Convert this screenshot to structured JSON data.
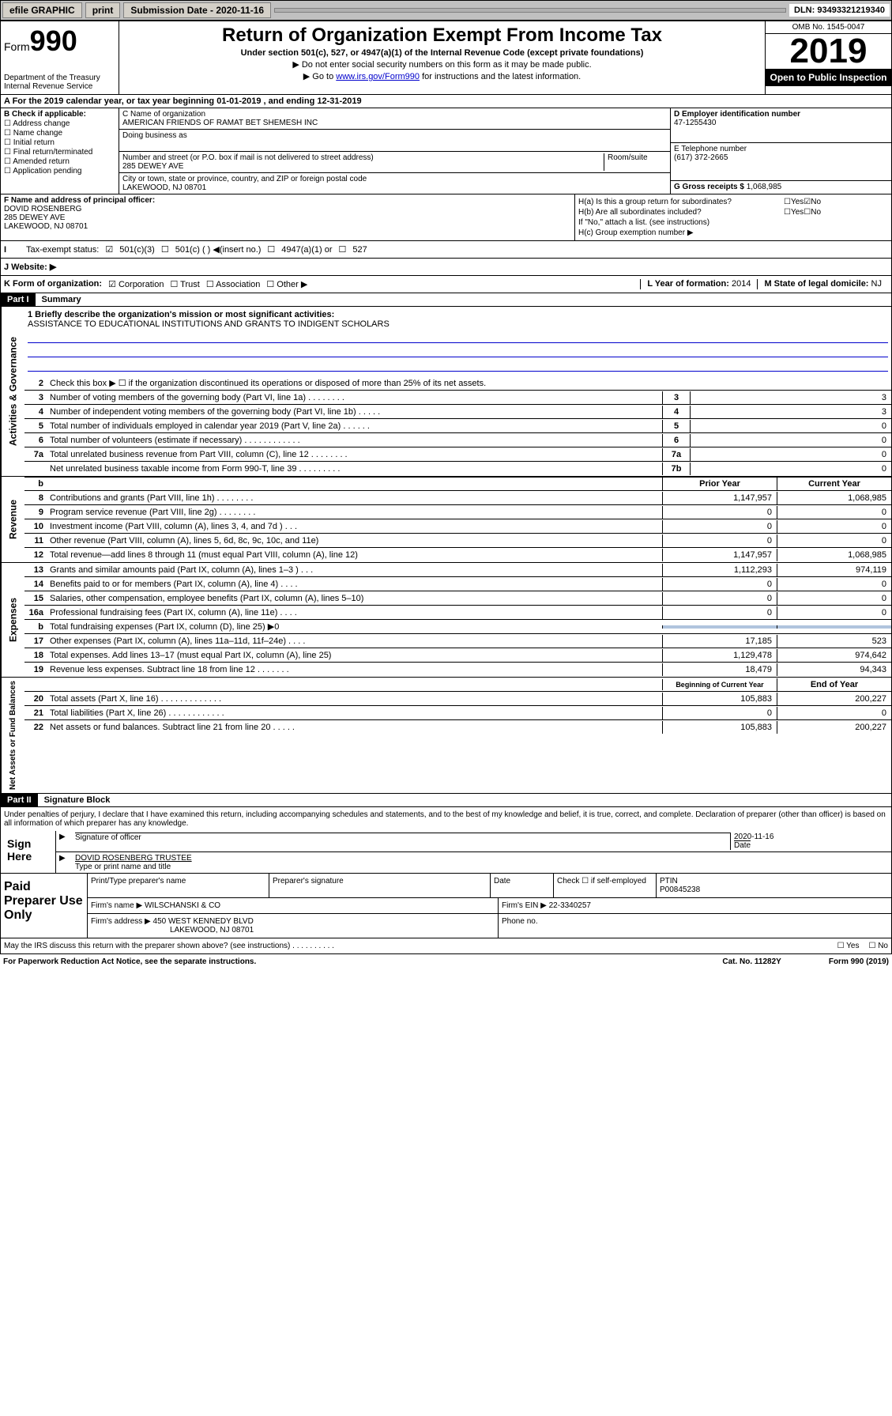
{
  "topbar": {
    "efile": "efile GRAPHIC",
    "print": "print",
    "sub_label": "Submission Date - 2020-11-16",
    "dln": "DLN: 93493321219340"
  },
  "header": {
    "form_prefix": "Form",
    "form_number": "990",
    "dept": "Department of the Treasury Internal Revenue Service",
    "title": "Return of Organization Exempt From Income Tax",
    "subtitle": "Under section 501(c), 527, or 4947(a)(1) of the Internal Revenue Code (except private foundations)",
    "inst1": "▶ Do not enter social security numbers on this form as it may be made public.",
    "inst2_pre": "▶ Go to ",
    "inst2_link": "www.irs.gov/Form990",
    "inst2_post": " for instructions and the latest information.",
    "omb": "OMB No. 1545-0047",
    "year": "2019",
    "open_public": "Open to Public Inspection"
  },
  "period": "A For the 2019 calendar year, or tax year beginning 01-01-2019    , and ending 12-31-2019",
  "section_b": {
    "label": "B Check if applicable:",
    "items": [
      "Address change",
      "Name change",
      "Initial return",
      "Final return/terminated",
      "Amended return",
      "Application pending"
    ]
  },
  "section_c": {
    "name_label": "C Name of organization",
    "org_name": "AMERICAN FRIENDS OF RAMAT BET SHEMESH INC",
    "dba_label": "Doing business as",
    "addr_label": "Number and street (or P.O. box if mail is not delivered to street address)",
    "room_label": "Room/suite",
    "address": "285 DEWEY AVE",
    "city_label": "City or town, state or province, country, and ZIP or foreign postal code",
    "city": "LAKEWOOD, NJ  08701"
  },
  "section_d": {
    "ein_label": "D Employer identification number",
    "ein": "47-1255430",
    "phone_label": "E Telephone number",
    "phone": "(617) 372-2665",
    "gross_label": "G Gross receipts $",
    "gross": "1,068,985"
  },
  "section_f": {
    "label": "F Name and address of principal officer:",
    "name": "DOVID ROSENBERG",
    "addr1": "285 DEWEY AVE",
    "addr2": "LAKEWOOD, NJ  08701"
  },
  "section_h": {
    "ha_label": "H(a)  Is this a group return for subordinates?",
    "hb_label": "H(b)  Are all subordinates included?",
    "hb_note": "If \"No,\" attach a list. (see instructions)",
    "hc_label": "H(c)  Group exemption number ▶"
  },
  "tax_status": {
    "label": "Tax-exempt status:",
    "opt1": "501(c)(3)",
    "opt2": "501(c) (   ) ◀(insert no.)",
    "opt3": "4947(a)(1) or",
    "opt4": "527"
  },
  "website_label": "J   Website: ▶",
  "k_row": {
    "label": "K Form of organization:",
    "opts": [
      "Corporation",
      "Trust",
      "Association",
      "Other ▶"
    ],
    "l_label": "L Year of formation:",
    "l_val": "2014",
    "m_label": "M State of legal domicile:",
    "m_val": "NJ"
  },
  "part1": {
    "header": "Part I",
    "title": "Summary",
    "q1": "1  Briefly describe the organization's mission or most significant activities:",
    "mission": "ASSISTANCE TO EDUCATIONAL INSTITUTIONS AND GRANTS TO INDIGENT SCHOLARS",
    "q2": "Check this box ▶ ☐  if the organization discontinued its operations or disposed of more than 25% of its net assets."
  },
  "governance_rows": [
    {
      "num": "3",
      "label": "Number of voting members of the governing body (Part VI, line 1a)   .    .    .    .    .    .    .    .",
      "box": "3",
      "val": "3"
    },
    {
      "num": "4",
      "label": "Number of independent voting members of the governing body (Part VI, line 1b)   .    .    .    .    .",
      "box": "4",
      "val": "3"
    },
    {
      "num": "5",
      "label": "Total number of individuals employed in calendar year 2019 (Part V, line 2a)   .    .    .    .    .    .",
      "box": "5",
      "val": "0"
    },
    {
      "num": "6",
      "label": "Total number of volunteers (estimate if necessary)   .    .    .    .    .    .    .    .    .    .    .    .",
      "box": "6",
      "val": "0"
    },
    {
      "num": "7a",
      "label": "Total unrelated business revenue from Part VIII, column (C), line 12   .    .    .    .    .    .    .    .",
      "box": "7a",
      "val": "0"
    },
    {
      "num": "",
      "label": "Net unrelated business taxable income from Form 990-T, line 39   .    .    .    .    .    .    .    .    .",
      "box": "7b",
      "val": "0"
    }
  ],
  "two_col_header": {
    "prior": "Prior Year",
    "current": "Current Year"
  },
  "revenue_rows": [
    {
      "num": "8",
      "label": "Contributions and grants (Part VIII, line 1h)   .    .    .    .    .    .    .    .",
      "prior": "1,147,957",
      "current": "1,068,985"
    },
    {
      "num": "9",
      "label": "Program service revenue (Part VIII, line 2g)   .    .    .    .    .    .    .    .",
      "prior": "0",
      "current": "0"
    },
    {
      "num": "10",
      "label": "Investment income (Part VIII, column (A), lines 3, 4, and 7d )   .    .    .",
      "prior": "0",
      "current": "0"
    },
    {
      "num": "11",
      "label": "Other revenue (Part VIII, column (A), lines 5, 6d, 8c, 9c, 10c, and 11e)",
      "prior": "0",
      "current": "0"
    },
    {
      "num": "12",
      "label": "Total revenue—add lines 8 through 11 (must equal Part VIII, column (A), line 12)",
      "prior": "1,147,957",
      "current": "1,068,985"
    }
  ],
  "expense_rows": [
    {
      "num": "13",
      "label": "Grants and similar amounts paid (Part IX, column (A), lines 1–3 )   .    .    .",
      "prior": "1,112,293",
      "current": "974,119"
    },
    {
      "num": "14",
      "label": "Benefits paid to or for members (Part IX, column (A), line 4)   .    .    .    .",
      "prior": "0",
      "current": "0"
    },
    {
      "num": "15",
      "label": "Salaries, other compensation, employee benefits (Part IX, column (A), lines 5–10)",
      "prior": "0",
      "current": "0"
    },
    {
      "num": "16a",
      "label": "Professional fundraising fees (Part IX, column (A), line 11e)   .    .    .    .",
      "prior": "0",
      "current": "0"
    },
    {
      "num": "b",
      "label": "Total fundraising expenses (Part IX, column (D), line 25) ▶0",
      "prior": "",
      "current": "",
      "shaded": true
    },
    {
      "num": "17",
      "label": "Other expenses (Part IX, column (A), lines 11a–11d, 11f–24e)   .    .    .    .",
      "prior": "17,185",
      "current": "523"
    },
    {
      "num": "18",
      "label": "Total expenses. Add lines 13–17 (must equal Part IX, column (A), line 25)",
      "prior": "1,129,478",
      "current": "974,642"
    },
    {
      "num": "19",
      "label": "Revenue less expenses. Subtract line 18 from line 12   .    .    .    .    .    .    .",
      "prior": "18,479",
      "current": "94,343"
    }
  ],
  "balance_header": {
    "prior": "Beginning of Current Year",
    "current": "End of Year"
  },
  "balance_rows": [
    {
      "num": "20",
      "label": "Total assets (Part X, line 16)   .    .    .    .    .    .    .    .    .    .    .    .    .",
      "prior": "105,883",
      "current": "200,227"
    },
    {
      "num": "21",
      "label": "Total liabilities (Part X, line 26)   .    .    .    .    .    .    .    .    .    .    .    .",
      "prior": "0",
      "current": "0"
    },
    {
      "num": "22",
      "label": "Net assets or fund balances. Subtract line 21 from line 20   .    .    .    .    .",
      "prior": "105,883",
      "current": "200,227"
    }
  ],
  "part2": {
    "header": "Part II",
    "title": "Signature Block",
    "declaration": "Under penalties of perjury, I declare that I have examined this return, including accompanying schedules and statements, and to the best of my knowledge and belief, it is true, correct, and complete. Declaration of preparer (other than officer) is based on all information of which preparer has any knowledge."
  },
  "sign": {
    "label": "Sign Here",
    "sig_label": "Signature of officer",
    "date_label": "Date",
    "date": "2020-11-16",
    "name": "DOVID ROSENBERG TRUSTEE",
    "name_label": "Type or print name and title"
  },
  "preparer": {
    "label": "Paid Preparer Use Only",
    "print_label": "Print/Type preparer's name",
    "sig_label": "Preparer's signature",
    "date_label": "Date",
    "check_label": "Check ☐ if self-employed",
    "ptin_label": "PTIN",
    "ptin": "P00845238",
    "firm_name_label": "Firm's name      ▶",
    "firm_name": "WILSCHANSKI & CO",
    "firm_ein_label": "Firm's EIN ▶",
    "firm_ein": "22-3340257",
    "firm_addr_label": "Firm's address ▶",
    "firm_addr": "450 WEST KENNEDY BLVD",
    "firm_city": "LAKEWOOD, NJ  08701",
    "phone_label": "Phone no."
  },
  "footer": {
    "discuss": "May the IRS discuss this return with the preparer shown above? (see instructions)    .    .    .    .    .    .    .    .    .    .",
    "paperwork": "For Paperwork Reduction Act Notice, see the separate instructions.",
    "cat": "Cat. No. 11282Y",
    "form": "Form 990 (2019)"
  },
  "side_labels": {
    "governance": "Activities & Governance",
    "revenue": "Revenue",
    "expenses": "Expenses",
    "balance": "Net Assets or Fund Balances"
  }
}
